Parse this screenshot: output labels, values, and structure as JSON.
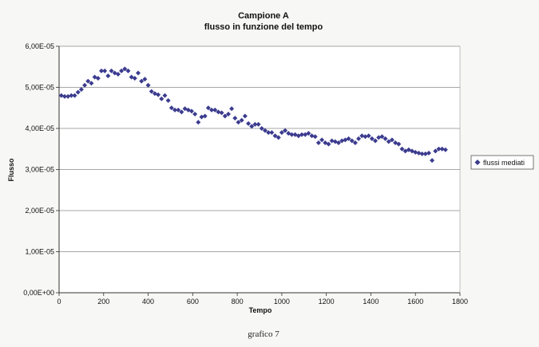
{
  "chart_data": {
    "type": "scatter",
    "title": "Campione A",
    "subtitle": "flusso in funzione del tempo",
    "xlabel": "Tempo",
    "ylabel": "Flusso",
    "xlim": [
      0,
      1800
    ],
    "ylim": [
      0,
      6e-05
    ],
    "x_ticks": [
      0,
      200,
      400,
      600,
      800,
      1000,
      1200,
      1400,
      1600,
      1800
    ],
    "x_tick_labels": [
      "0",
      "200",
      "400",
      "600",
      "800",
      "1000",
      "1200",
      "1400",
      "1600",
      "1800"
    ],
    "y_ticks": [
      0,
      1e-05,
      2e-05,
      3e-05,
      4e-05,
      5e-05,
      6e-05
    ],
    "y_tick_labels": [
      "0,00E+00",
      "1,00E-05",
      "2,00E-05",
      "3,00E-05",
      "4,00E-05",
      "5,00E-05",
      "6,00E-05"
    ],
    "grid": "horizontal major",
    "legend_position": "right",
    "caption": "grafico 7",
    "series": [
      {
        "name": "flussi mediati",
        "color": "#3b3b8f",
        "marker": "diamond",
        "points": [
          [
            10,
            4.8e-05
          ],
          [
            25,
            4.78e-05
          ],
          [
            40,
            4.78e-05
          ],
          [
            55,
            4.8e-05
          ],
          [
            70,
            4.8e-05
          ],
          [
            85,
            4.88e-05
          ],
          [
            100,
            4.95e-05
          ],
          [
            115,
            5.05e-05
          ],
          [
            130,
            5.15e-05
          ],
          [
            145,
            5.1e-05
          ],
          [
            160,
            5.25e-05
          ],
          [
            175,
            5.22e-05
          ],
          [
            190,
            5.4e-05
          ],
          [
            205,
            5.4e-05
          ],
          [
            220,
            5.28e-05
          ],
          [
            235,
            5.4e-05
          ],
          [
            250,
            5.35e-05
          ],
          [
            265,
            5.32e-05
          ],
          [
            280,
            5.4e-05
          ],
          [
            295,
            5.45e-05
          ],
          [
            310,
            5.4e-05
          ],
          [
            325,
            5.25e-05
          ],
          [
            340,
            5.22e-05
          ],
          [
            355,
            5.35e-05
          ],
          [
            370,
            5.15e-05
          ],
          [
            385,
            5.2e-05
          ],
          [
            400,
            5.05e-05
          ],
          [
            415,
            4.9e-05
          ],
          [
            430,
            4.85e-05
          ],
          [
            445,
            4.82e-05
          ],
          [
            460,
            4.72e-05
          ],
          [
            475,
            4.8e-05
          ],
          [
            490,
            4.68e-05
          ],
          [
            505,
            4.5e-05
          ],
          [
            520,
            4.45e-05
          ],
          [
            535,
            4.45e-05
          ],
          [
            550,
            4.4e-05
          ],
          [
            565,
            4.48e-05
          ],
          [
            580,
            4.45e-05
          ],
          [
            595,
            4.42e-05
          ],
          [
            610,
            4.35e-05
          ],
          [
            625,
            4.15e-05
          ],
          [
            640,
            4.28e-05
          ],
          [
            655,
            4.3e-05
          ],
          [
            670,
            4.5e-05
          ],
          [
            685,
            4.45e-05
          ],
          [
            700,
            4.45e-05
          ],
          [
            715,
            4.4e-05
          ],
          [
            730,
            4.38e-05
          ],
          [
            745,
            4.3e-05
          ],
          [
            760,
            4.35e-05
          ],
          [
            775,
            4.48e-05
          ],
          [
            790,
            4.25e-05
          ],
          [
            805,
            4.15e-05
          ],
          [
            820,
            4.2e-05
          ],
          [
            835,
            4.3e-05
          ],
          [
            850,
            4.12e-05
          ],
          [
            865,
            4.05e-05
          ],
          [
            880,
            4.1e-05
          ],
          [
            895,
            4.1e-05
          ],
          [
            910,
            4e-05
          ],
          [
            925,
            3.95e-05
          ],
          [
            940,
            3.9e-05
          ],
          [
            955,
            3.9e-05
          ],
          [
            970,
            3.82e-05
          ],
          [
            985,
            3.78e-05
          ],
          [
            1000,
            3.9e-05
          ],
          [
            1015,
            3.95e-05
          ],
          [
            1030,
            3.88e-05
          ],
          [
            1045,
            3.85e-05
          ],
          [
            1060,
            3.85e-05
          ],
          [
            1075,
            3.82e-05
          ],
          [
            1090,
            3.85e-05
          ],
          [
            1105,
            3.85e-05
          ],
          [
            1120,
            3.88e-05
          ],
          [
            1135,
            3.82e-05
          ],
          [
            1150,
            3.8e-05
          ],
          [
            1165,
            3.65e-05
          ],
          [
            1180,
            3.72e-05
          ],
          [
            1195,
            3.65e-05
          ],
          [
            1210,
            3.62e-05
          ],
          [
            1225,
            3.7e-05
          ],
          [
            1240,
            3.68e-05
          ],
          [
            1255,
            3.65e-05
          ],
          [
            1270,
            3.7e-05
          ],
          [
            1285,
            3.72e-05
          ],
          [
            1300,
            3.75e-05
          ],
          [
            1315,
            3.7e-05
          ],
          [
            1330,
            3.65e-05
          ],
          [
            1345,
            3.75e-05
          ],
          [
            1360,
            3.82e-05
          ],
          [
            1375,
            3.8e-05
          ],
          [
            1390,
            3.82e-05
          ],
          [
            1405,
            3.75e-05
          ],
          [
            1420,
            3.7e-05
          ],
          [
            1435,
            3.78e-05
          ],
          [
            1450,
            3.8e-05
          ],
          [
            1465,
            3.75e-05
          ],
          [
            1480,
            3.68e-05
          ],
          [
            1495,
            3.72e-05
          ],
          [
            1510,
            3.65e-05
          ],
          [
            1525,
            3.62e-05
          ],
          [
            1540,
            3.5e-05
          ],
          [
            1555,
            3.45e-05
          ],
          [
            1570,
            3.48e-05
          ],
          [
            1585,
            3.45e-05
          ],
          [
            1600,
            3.42e-05
          ],
          [
            1615,
            3.4e-05
          ],
          [
            1630,
            3.38e-05
          ],
          [
            1645,
            3.38e-05
          ],
          [
            1660,
            3.4e-05
          ],
          [
            1675,
            3.22e-05
          ],
          [
            1690,
            3.45e-05
          ],
          [
            1705,
            3.5e-05
          ],
          [
            1720,
            3.5e-05
          ],
          [
            1735,
            3.48e-05
          ]
        ]
      }
    ]
  }
}
